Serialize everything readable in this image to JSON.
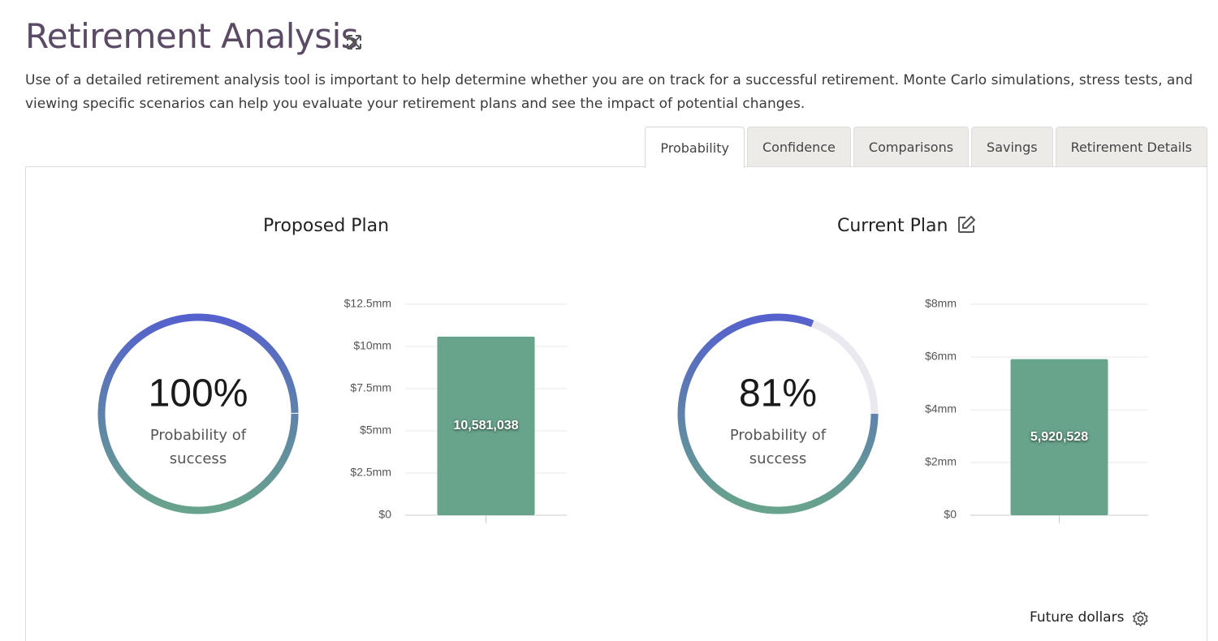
{
  "header": {
    "title": "Retirement Analysis",
    "description": "Use of a detailed retirement analysis tool is important to help determine whether you are on track for a successful retirement. Monte Carlo simulations, stress tests, and viewing specific scenarios can help you evaluate your retirement plans and see the impact of potential changes."
  },
  "tabs": {
    "items": [
      "Probability",
      "Confidence",
      "Comparisons",
      "Savings",
      "Retirement Details"
    ],
    "active": 0
  },
  "sections": [
    {
      "title": "Proposed Plan"
    },
    {
      "title": "Current Plan"
    }
  ],
  "chart_data": [
    {
      "type": "gauge",
      "values": [
        100
      ],
      "value_labels": [
        "100%"
      ],
      "caption": "Probability of success",
      "ylim": [
        0,
        100
      ],
      "colors": [
        "#5561cc",
        "#68a38b"
      ],
      "track_color": "#e9e9ef"
    },
    {
      "type": "bar",
      "categories": [
        null
      ],
      "values": [
        10581038
      ],
      "value_labels": [
        "10,581,038"
      ],
      "ylim": [
        0,
        12500000
      ],
      "yticks": [
        {
          "value": 0,
          "label": "$0"
        },
        {
          "value": 2500000,
          "label": "$2.5mm"
        },
        {
          "value": 5000000,
          "label": "$5mm"
        },
        {
          "value": 7500000,
          "label": "$7.5mm"
        },
        {
          "value": 10000000,
          "label": "$10mm"
        },
        {
          "value": 12500000,
          "label": "$12.5mm"
        }
      ],
      "color": "#68a38b",
      "grid": true
    },
    {
      "type": "gauge",
      "values": [
        81
      ],
      "value_labels": [
        "81%"
      ],
      "caption": "Probability of success",
      "ylim": [
        0,
        100
      ],
      "colors": [
        "#5561cc",
        "#68a38b"
      ],
      "track_color": "#e9e9ef"
    },
    {
      "type": "bar",
      "categories": [
        null
      ],
      "values": [
        5920528
      ],
      "value_labels": [
        "5,920,528"
      ],
      "ylim": [
        0,
        8000000
      ],
      "yticks": [
        {
          "value": 0,
          "label": "$0"
        },
        {
          "value": 2000000,
          "label": "$2mm"
        },
        {
          "value": 4000000,
          "label": "$4mm"
        },
        {
          "value": 6000000,
          "label": "$6mm"
        },
        {
          "value": 8000000,
          "label": "$8mm"
        }
      ],
      "color": "#68a38b",
      "grid": true
    }
  ],
  "footer": {
    "label": "Future dollars"
  }
}
